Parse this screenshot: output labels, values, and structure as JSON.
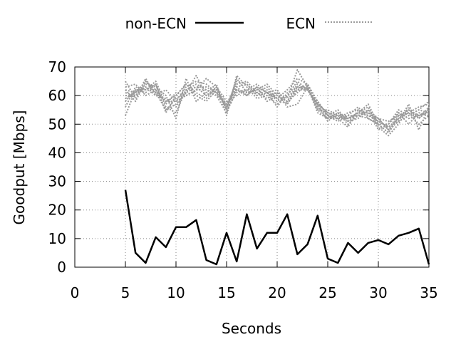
{
  "chart_data": {
    "type": "line",
    "xlabel": "Seconds",
    "ylabel": "Goodput [Mbps]",
    "xlim": [
      0,
      35
    ],
    "ylim": [
      0,
      70
    ],
    "xticks": [
      0,
      5,
      10,
      15,
      20,
      25,
      30,
      35
    ],
    "yticks": [
      0,
      10,
      20,
      30,
      40,
      50,
      60,
      70
    ],
    "grid": true,
    "legend_position": "top",
    "legend": [
      {
        "label": "non-ECN",
        "color": "#000000",
        "style": "solid"
      },
      {
        "label": "ECN",
        "color": "#9a9a9a",
        "style": "dotted"
      }
    ],
    "x": [
      5,
      6,
      7,
      8,
      9,
      10,
      11,
      12,
      13,
      14,
      15,
      16,
      17,
      18,
      19,
      20,
      21,
      22,
      23,
      24,
      25,
      26,
      27,
      28,
      29,
      30,
      31,
      32,
      33,
      34,
      35
    ],
    "series": [
      {
        "name": "non-ECN",
        "group": "non-ECN",
        "values": [
          27,
          5,
          1.5,
          10.5,
          7,
          14,
          14,
          16.5,
          2.5,
          1,
          12,
          2,
          18.5,
          6.5,
          12,
          12,
          18.5,
          4.5,
          8,
          18,
          3,
          1.5,
          8.5,
          5,
          8.5,
          9.5,
          8,
          11,
          12,
          13.5,
          1
        ]
      },
      {
        "group": "ECN",
        "values": [
          60,
          60,
          63,
          61,
          55,
          57,
          61,
          63,
          60,
          63,
          55,
          66,
          61,
          62,
          60,
          61,
          56,
          57,
          63,
          55,
          52,
          53,
          52,
          54,
          53,
          52,
          48,
          51,
          53,
          55,
          54
        ]
      },
      {
        "group": "ECN",
        "values": [
          62,
          61,
          65,
          62,
          58,
          60,
          64,
          60,
          58,
          62,
          56,
          63,
          64,
          60,
          62,
          58,
          60,
          62,
          64,
          57,
          54,
          52,
          54,
          55,
          54,
          51,
          49,
          52,
          55,
          52,
          56
        ]
      },
      {
        "group": "ECN",
        "values": [
          58,
          62,
          61,
          64,
          56,
          54,
          62,
          64,
          62,
          60,
          54,
          62,
          60,
          63,
          58,
          60,
          58,
          64,
          62,
          56,
          52,
          54,
          50,
          53,
          55,
          48,
          50,
          54,
          50,
          54,
          53
        ]
      },
      {
        "group": "ECN",
        "values": [
          65,
          59,
          66,
          60,
          62,
          58,
          63,
          65,
          64,
          61,
          57,
          64,
          65,
          61,
          63,
          59,
          62,
          66,
          64,
          58,
          53,
          51,
          53,
          56,
          52,
          50,
          47,
          53,
          54,
          56,
          57
        ]
      },
      {
        "group": "ECN",
        "values": [
          56,
          63,
          62,
          65,
          57,
          61,
          60,
          62,
          66,
          63,
          58,
          60,
          62,
          64,
          61,
          62,
          57,
          63,
          63,
          55,
          55,
          53,
          51,
          54,
          56,
          49,
          46,
          50,
          56,
          52,
          55
        ]
      },
      {
        "group": "ECN",
        "values": [
          61,
          60,
          64,
          63,
          60,
          52,
          66,
          58,
          61,
          64,
          53,
          67,
          63,
          59,
          60,
          57,
          60,
          65,
          62,
          57,
          51,
          54,
          52,
          53,
          54,
          52,
          48,
          54,
          52,
          53,
          54
        ]
      },
      {
        "group": "ECN",
        "values": [
          63,
          64,
          60,
          62,
          55,
          59,
          61,
          67,
          60,
          62,
          57,
          62,
          61,
          62,
          64,
          60,
          58,
          61,
          64,
          56,
          53,
          52,
          49,
          55,
          53,
          51,
          49,
          51,
          57,
          48,
          56
        ]
      },
      {
        "group": "ECN",
        "values": [
          59,
          61,
          63,
          60,
          59,
          56,
          62,
          63,
          63,
          61,
          56,
          65,
          64,
          60,
          61,
          56,
          61,
          63,
          62,
          57,
          54,
          53,
          53,
          53,
          52,
          50,
          50,
          55,
          53,
          55,
          58
        ]
      },
      {
        "group": "ECN",
        "values": [
          53,
          62,
          62,
          64,
          54,
          60,
          64,
          61,
          59,
          63,
          55,
          61,
          62,
          61,
          59,
          61,
          59,
          69,
          63,
          54,
          52,
          52,
          52,
          54,
          57,
          50,
          47,
          52,
          54,
          50,
          53
        ]
      },
      {
        "group": "ECN",
        "values": [
          62,
          58,
          65,
          61,
          58,
          58,
          60,
          62,
          62,
          60,
          57,
          63,
          60,
          63,
          61,
          59,
          57,
          62,
          62,
          58,
          53,
          55,
          51,
          52,
          55,
          52,
          51,
          53,
          55,
          53,
          55
        ]
      }
    ]
  }
}
